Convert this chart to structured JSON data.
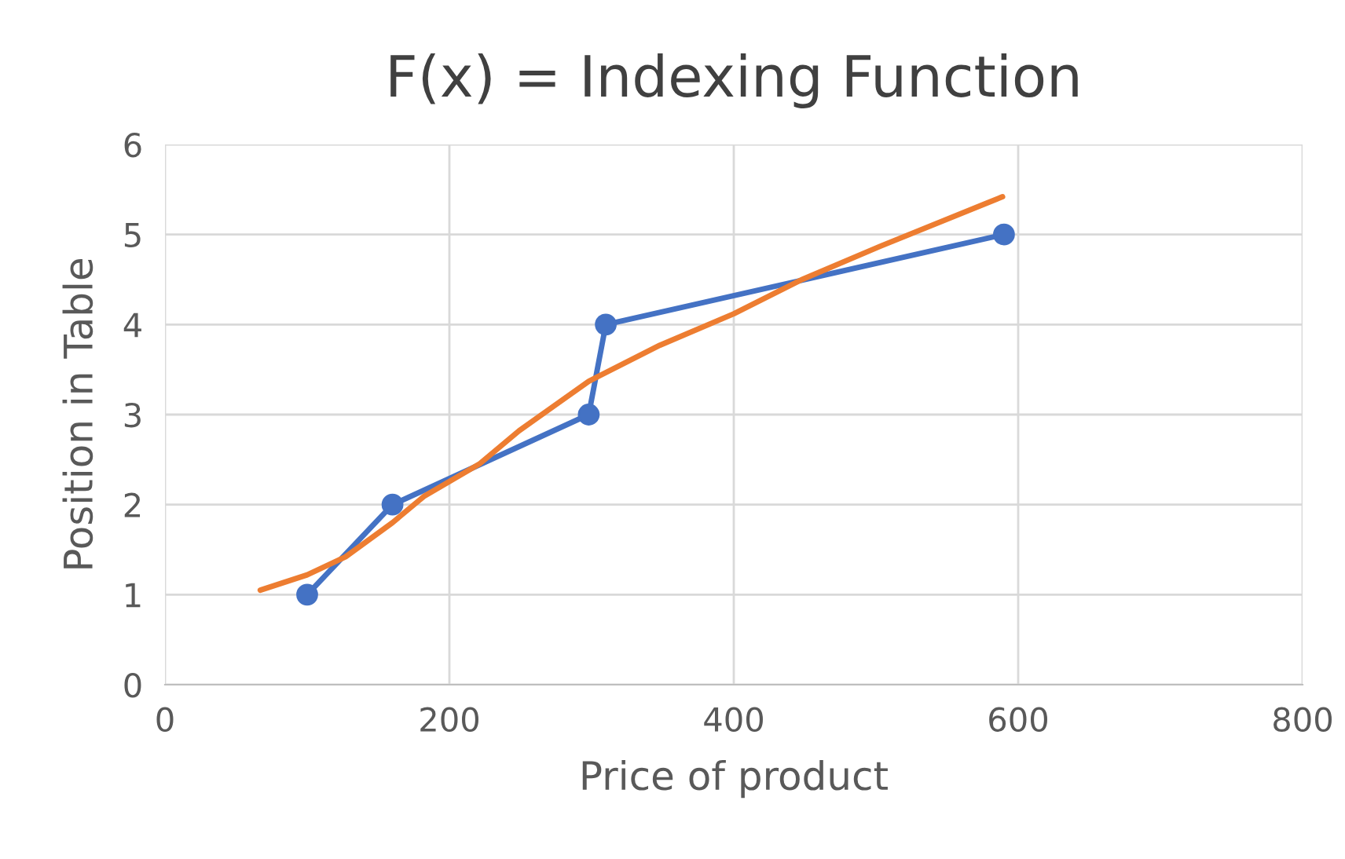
{
  "chart_data": {
    "type": "line",
    "title": "F(x) = Indexing Function",
    "xlabel": "Price of product",
    "ylabel": "Position in Table",
    "xlim": [
      0,
      800
    ],
    "xticks": [
      0,
      200,
      400,
      600,
      800
    ],
    "ylim": [
      0,
      6
    ],
    "yticks": [
      0,
      1,
      2,
      3,
      4,
      5,
      6
    ],
    "grid": true,
    "series": [
      {
        "color": "#4472c4",
        "marker": "circle",
        "x": [
          100,
          160,
          298,
          310,
          590
        ],
        "values": [
          1,
          2,
          3,
          4,
          5
        ]
      },
      {
        "color": "#ed7d31",
        "marker": "none",
        "x": [
          67,
          100,
          127,
          160,
          182,
          221,
          249,
          298,
          348,
          400,
          448,
          503,
          589
        ],
        "values": [
          1.05,
          1.22,
          1.42,
          1.8,
          2.09,
          2.45,
          2.82,
          3.37,
          3.77,
          4.12,
          4.5,
          4.87,
          5.42
        ]
      }
    ]
  }
}
